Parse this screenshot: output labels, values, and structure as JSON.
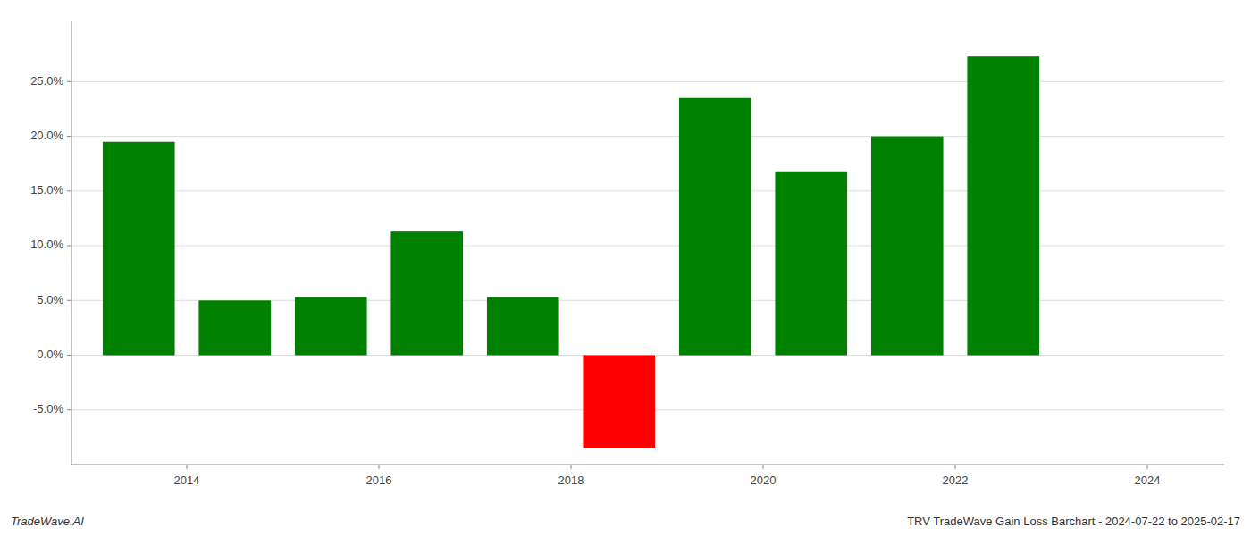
{
  "chart_data": {
    "type": "bar",
    "x": [
      2013.5,
      2014.5,
      2015.5,
      2016.5,
      2017.5,
      2018.5,
      2019.5,
      2020.5,
      2021.5,
      2022.5
    ],
    "values": [
      0.195,
      0.05,
      0.053,
      0.113,
      0.053,
      -0.085,
      0.235,
      0.168,
      0.2,
      0.273
    ],
    "colors": [
      "#008000",
      "#008000",
      "#008000",
      "#008000",
      "#008000",
      "#ff0000",
      "#008000",
      "#008000",
      "#008000",
      "#008000"
    ],
    "xlim": [
      2012.8,
      2024.8
    ],
    "xticks": [
      2014,
      2016,
      2018,
      2020,
      2022,
      2024
    ],
    "ylim": [
      -0.1,
      0.305
    ],
    "yticks": [
      {
        "value": -0.05,
        "label": "-5.0%"
      },
      {
        "value": 0.0,
        "label": "0.0%"
      },
      {
        "value": 0.05,
        "label": "5.0%"
      },
      {
        "value": 0.1,
        "label": "10.0%"
      },
      {
        "value": 0.15,
        "label": "15.0%"
      },
      {
        "value": 0.2,
        "label": "20.0%"
      },
      {
        "value": 0.25,
        "label": "25.0%"
      }
    ],
    "grid": true,
    "annotations": [
      "TradeWave.AI",
      "TRV TradeWave Gain Loss Barchart - 2024-07-22 to 2025-02-17"
    ]
  }
}
